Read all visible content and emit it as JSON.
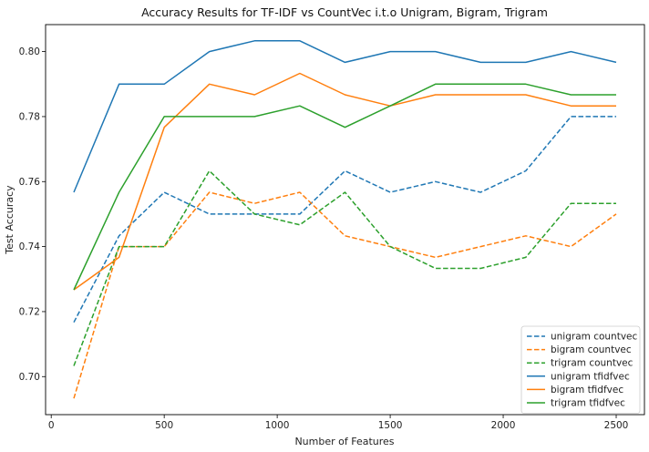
{
  "chart_data": {
    "type": "line",
    "title": "Accuracy Results for TF-IDF vs CountVec  i.t.o  Unigram, Bigram, Trigram",
    "xlabel": "Number of Features",
    "ylabel": "Test Accuracy",
    "xlim": [
      -25,
      2625
    ],
    "ylim": [
      0.6883,
      0.8083
    ],
    "xticks": [
      0,
      500,
      1000,
      1500,
      2000,
      2500
    ],
    "xtick_labels": [
      "0",
      "500",
      "1000",
      "1500",
      "2000",
      "2500"
    ],
    "yticks": [
      0.7,
      0.72,
      0.74,
      0.76,
      0.78,
      0.8
    ],
    "ytick_labels": [
      "0.70",
      "0.72",
      "0.74",
      "0.76",
      "0.78",
      "0.80"
    ],
    "grid": false,
    "legend_position": "lower-right",
    "x": [
      100,
      300,
      500,
      700,
      900,
      1100,
      1300,
      1500,
      1700,
      1900,
      2100,
      2300,
      2500
    ],
    "series": [
      {
        "name": "unigram countvec",
        "color": "#1f77b4",
        "dash": true,
        "values": [
          0.7167,
          0.7433,
          0.7567,
          0.75,
          0.75,
          0.75,
          0.7633,
          0.7567,
          0.76,
          0.7567,
          0.7633,
          0.78,
          0.78
        ]
      },
      {
        "name": "bigram countvec",
        "color": "#ff7f0e",
        "dash": true,
        "values": [
          0.6933,
          0.74,
          0.74,
          0.7567,
          0.7533,
          0.7567,
          0.7433,
          0.74,
          0.7367,
          0.74,
          0.7433,
          0.74,
          0.75
        ]
      },
      {
        "name": "trigram countvec",
        "color": "#2ca02c",
        "dash": true,
        "values": [
          0.7033,
          0.74,
          0.74,
          0.7633,
          0.75,
          0.7467,
          0.7567,
          0.74,
          0.7333,
          0.7333,
          0.7367,
          0.7533,
          0.7533
        ]
      },
      {
        "name": "unigram tfidfvec",
        "color": "#1f77b4",
        "dash": false,
        "values": [
          0.7567,
          0.79,
          0.79,
          0.8,
          0.8033,
          0.8033,
          0.7967,
          0.8,
          0.8,
          0.7967,
          0.7967,
          0.8,
          0.7967
        ]
      },
      {
        "name": "bigram tfidfvec",
        "color": "#ff7f0e",
        "dash": false,
        "values": [
          0.7267,
          0.7367,
          0.7767,
          0.79,
          0.7867,
          0.7933,
          0.7867,
          0.7833,
          0.7867,
          0.7867,
          0.7867,
          0.7833,
          0.7833
        ]
      },
      {
        "name": "trigram tfidfvec",
        "color": "#2ca02c",
        "dash": false,
        "values": [
          0.7267,
          0.7567,
          0.78,
          0.78,
          0.78,
          0.7833,
          0.7767,
          0.7833,
          0.79,
          0.79,
          0.79,
          0.7867,
          0.7867
        ]
      }
    ]
  }
}
